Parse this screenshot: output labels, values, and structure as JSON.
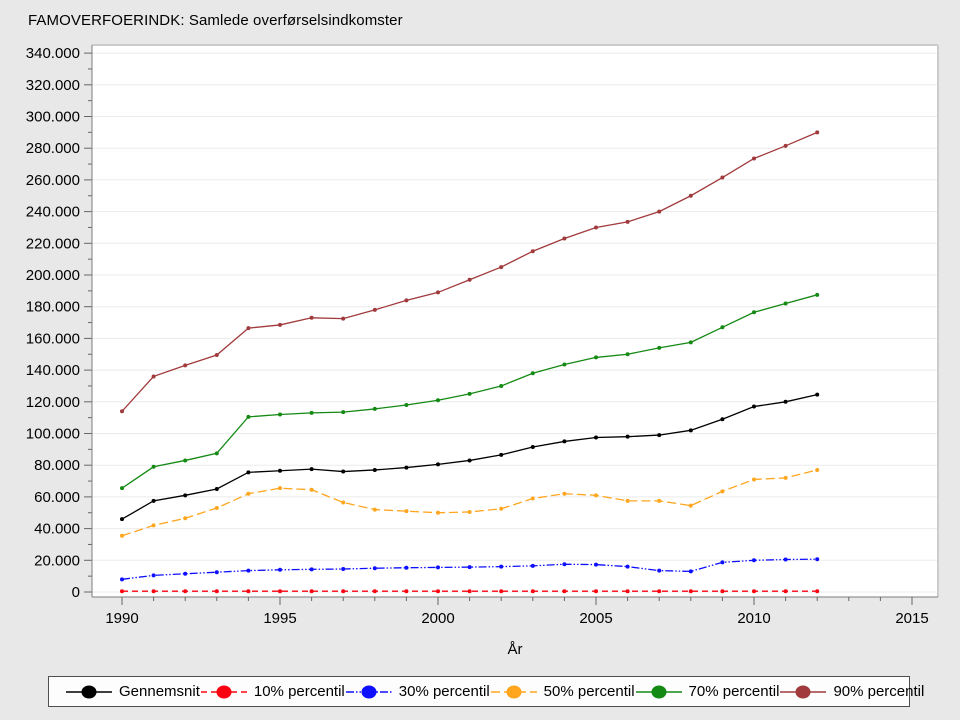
{
  "title": "FAMOVERFOERINDK: Samlede overførselsindkomster",
  "chart_data": {
    "type": "line",
    "title": "FAMOVERFOERINDK: Samlede overførselsindkomster",
    "xlabel": "År",
    "ylabel": "",
    "grid": "horizontal",
    "legend_position": "bottom",
    "xlim": [
      1989,
      2015.8
    ],
    "ylim": [
      0,
      340000
    ],
    "ytick_step": 20000,
    "ytick_labels": [
      "0",
      "20.000",
      "40.000",
      "60.000",
      "80.000",
      "100.000",
      "120.000",
      "140.000",
      "160.000",
      "180.000",
      "200.000",
      "220.000",
      "240.000",
      "260.000",
      "280.000",
      "300.000",
      "320.000",
      "340.000"
    ],
    "xtick_labels": [
      "1990",
      "1995",
      "2000",
      "2005",
      "2010",
      "2015"
    ],
    "xticks_labeled": [
      1990,
      1995,
      2000,
      2005,
      2010,
      2015
    ],
    "xticks_minor_every": 1,
    "x": [
      1990,
      1991,
      1992,
      1993,
      1994,
      1995,
      1996,
      1997,
      1998,
      1999,
      2000,
      2001,
      2002,
      2003,
      2004,
      2005,
      2006,
      2007,
      2008,
      2009,
      2010,
      2011,
      2012
    ],
    "series": [
      {
        "name": "Gennemsnit",
        "color": "#000000",
        "line_style": "solid",
        "values": [
          46000,
          57500,
          61000,
          65000,
          75500,
          76500,
          77500,
          76000,
          77000,
          78500,
          80500,
          83000,
          86500,
          91500,
          95000,
          97500,
          98000,
          99000,
          102000,
          109000,
          117000,
          120000,
          124500
        ]
      },
      {
        "name": "10% percentil",
        "color": "#fb0411",
        "line_style": "dashed",
        "values": [
          500,
          500,
          500,
          500,
          500,
          500,
          500,
          500,
          500,
          500,
          500,
          500,
          500,
          500,
          500,
          500,
          500,
          500,
          500,
          500,
          500,
          500,
          500
        ]
      },
      {
        "name": "30% percentil",
        "color": "#0f0fff",
        "line_style": "dashdotdot",
        "values": [
          8000,
          10500,
          11500,
          12500,
          13500,
          14000,
          14300,
          14500,
          15000,
          15300,
          15500,
          15700,
          16000,
          16500,
          17500,
          17300,
          16000,
          13500,
          13000,
          18700,
          20000,
          20500,
          20700
        ]
      },
      {
        "name": "50% percentil",
        "color": "#ffa51e",
        "line_style": "longdash",
        "values": [
          35500,
          42000,
          46500,
          53000,
          62000,
          65500,
          64500,
          56500,
          52000,
          51000,
          50000,
          50500,
          52500,
          59000,
          62000,
          61000,
          57500,
          57500,
          54500,
          63500,
          71000,
          72000,
          77000
        ]
      },
      {
        "name": "70% percentil",
        "color": "#148a14",
        "line_style": "solid",
        "values": [
          65500,
          79000,
          83000,
          87500,
          110500,
          112000,
          113000,
          113500,
          115500,
          118000,
          121000,
          125000,
          130000,
          138000,
          143500,
          148000,
          150000,
          154000,
          157500,
          167000,
          176500,
          182000,
          187500
        ]
      },
      {
        "name": "90% percentil",
        "color": "#a13a3c",
        "line_style": "solid",
        "values": [
          114000,
          136000,
          143000,
          149500,
          166500,
          168500,
          173000,
          172500,
          178000,
          184000,
          189000,
          197000,
          205000,
          215000,
          223000,
          230000,
          233500,
          240000,
          250000,
          261500,
          273500,
          281500,
          290000
        ]
      }
    ]
  }
}
